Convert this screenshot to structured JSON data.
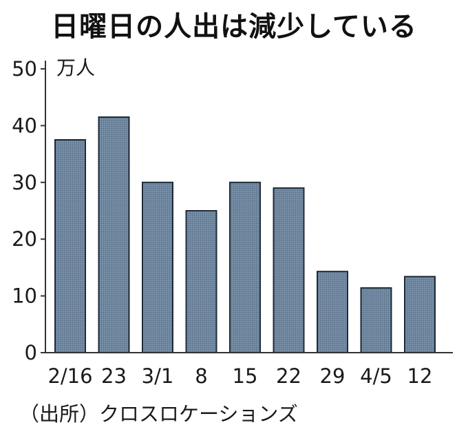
{
  "chart_data": {
    "type": "bar",
    "title": "日曜日の人出は減少している",
    "unit": "万人",
    "categories": [
      "2/16",
      "23",
      "3/1",
      "8",
      "15",
      "22",
      "29",
      "4/5",
      "12"
    ],
    "values": [
      37.5,
      41.5,
      30,
      25,
      30,
      29,
      14.3,
      11.4,
      13.4
    ],
    "ylim": [
      0,
      50
    ],
    "yticks": [
      0,
      10,
      20,
      30,
      40,
      50
    ],
    "xlabel": "",
    "ylabel": "",
    "grid": false,
    "source": "（出所）クロスロケーションズ"
  },
  "colors": {
    "bar_fill": "#6f87a0",
    "bar_stroke": "#1e2a36",
    "axis": "#333333"
  }
}
